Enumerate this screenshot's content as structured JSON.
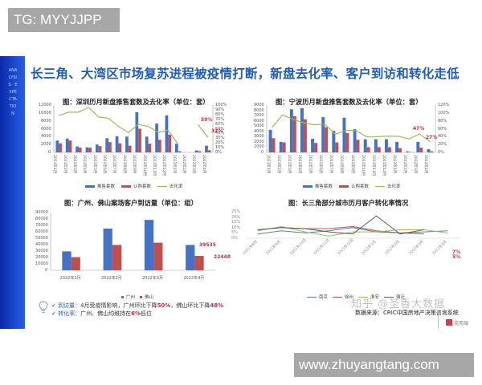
{
  "watermarks": {
    "top_tag": "TG: MYYJJPP",
    "bottom_tag": "www.zhuyangtang.com",
    "zhihu": "知乎 @圣香大数据",
    "logo_text": "克而瑞"
  },
  "slide": {
    "side_text": "ANALYSIS · EXPECTATION",
    "title": "长三角、大湾区市场复苏进程被疫情打断，新盘去化率、客户到访和转化走低",
    "notes": {
      "line1_key": "到访量：",
      "line1_text_a": "4月受疫情影响，广州环比下降",
      "line1_val_a": "50%",
      "line1_text_b": "，佛山环比下降",
      "line1_val_b": "48%",
      "line2_key": "转化率：",
      "line2_text_a": "广州、佛山均维持在",
      "line2_val": "6%",
      "line2_text_b": "低位"
    },
    "source": "数据来源：CRIC中国房地产决策咨询系统"
  },
  "colors": {
    "blue_bar": "#4472c4",
    "red_bar": "#c0504d",
    "green_line": "#9bbb59",
    "title_blue": "#1f5bb8",
    "annotation_red": "#c0303c",
    "line_nanjing": "#4f81bd",
    "line_xuzhou": "#c0504d",
    "line_huaian": "#9bbb59",
    "line_suqian": "#595959"
  },
  "chart_data": [
    {
      "type": "bar",
      "title": "图：深圳历月新盘推售套数及去化率（单位：套）",
      "categories": [
        "2021年1月",
        "2021年2月",
        "2021年3月",
        "2021年4月",
        "2021年5月",
        "2021年6月",
        "2021年7月",
        "2021年8月",
        "2021年9月",
        "2021年10月",
        "2021年11月",
        "2021年12月",
        "2022年1月",
        "2022年2月",
        "2022年3月",
        "2022年4月"
      ],
      "series": [
        {
          "name": "推售套数",
          "kind": "bar",
          "values": [
            3000,
            3500,
            1500,
            1300,
            2000,
            3600,
            4100,
            4000,
            10200,
            4000,
            7300,
            9400,
            2200,
            0,
            500,
            1700
          ]
        },
        {
          "name": "认购套数",
          "kind": "bar",
          "values": [
            2300,
            3000,
            1200,
            1200,
            1600,
            2600,
            2300,
            1700,
            6000,
            2200,
            3200,
            4500,
            300,
            0,
            300,
            550
          ]
        },
        {
          "name": "去化率",
          "kind": "line",
          "axis": "right",
          "values": [
            78,
            85,
            85,
            95,
            75,
            72,
            55,
            42,
            59,
            55,
            42,
            47,
            17,
            null,
            59,
            32
          ]
        }
      ],
      "annotations": [
        "59%",
        "32%"
      ],
      "ylim": [
        0,
        12000
      ],
      "yticks": [
        "0",
        "2000",
        "4000",
        "6000",
        "8000",
        "10000",
        "12000"
      ],
      "y2lim": [
        0,
        100
      ],
      "y2ticks": [
        "0%",
        "10%",
        "20%",
        "30%",
        "40%",
        "50%",
        "60%",
        "70%",
        "80%",
        "90%",
        "100%"
      ],
      "legend": [
        "推售套数",
        "认购套数",
        "去化率"
      ]
    },
    {
      "type": "bar",
      "title": "图：宁波历月新盘推售套数及去化率（单位：套）",
      "categories": [
        "2021年1月",
        "2021年2月",
        "2021年3月",
        "2021年4月",
        "2021年5月",
        "2021年6月",
        "2021年7月",
        "2021年8月",
        "2021年9月",
        "2021年10月",
        "2021年11月",
        "2021年12月",
        "2022年1月",
        "2022年2月",
        "2022年3月",
        "2022年4月"
      ],
      "series": [
        {
          "name": "推售套数",
          "kind": "bar",
          "values": [
            4300,
            2000,
            8200,
            8400,
            2600,
            6700,
            4100,
            6600,
            4400,
            2500,
            2500,
            2500,
            2000,
            200,
            2000,
            600
          ]
        },
        {
          "name": "认购套数",
          "kind": "bar",
          "values": [
            2700,
            1900,
            6900,
            6300,
            1800,
            4800,
            1900,
            3700,
            2400,
            1000,
            1000,
            1000,
            800,
            50,
            900,
            200
          ]
        },
        {
          "name": "去化率",
          "kind": "line",
          "axis": "right",
          "values": [
            63,
            95,
            84,
            75,
            70,
            72,
            46,
            56,
            55,
            39,
            40,
            41,
            41,
            34,
            47,
            27
          ]
        }
      ],
      "annotations": [
        "47%",
        "27%"
      ],
      "ylim": [
        0,
        9000
      ],
      "yticks": [
        "0",
        "1000",
        "2000",
        "3000",
        "4000",
        "5000",
        "6000",
        "7000",
        "8000",
        "9000"
      ],
      "y2lim": [
        0,
        120
      ],
      "y2ticks": [
        "0%",
        "20%",
        "40%",
        "60%",
        "80%",
        "100%",
        "120%"
      ],
      "legend": [
        "推售套数",
        "认购套数",
        "去化率"
      ]
    },
    {
      "type": "bar",
      "title": "图：广州、佛山案场客户到访量（单位：组）",
      "categories": [
        "2022年1月",
        "2022年2月",
        "2022年3月",
        "2022年4月"
      ],
      "series": [
        {
          "name": "广州",
          "values": [
            29500,
            65000,
            78500,
            39535
          ]
        },
        {
          "name": "佛山",
          "values": [
            20500,
            39500,
            43000,
            22448
          ]
        }
      ],
      "annotations": [
        "39535",
        "22448"
      ],
      "ylim": [
        0,
        90000
      ],
      "yticks": [
        "0",
        "10000",
        "20000",
        "30000",
        "40000",
        "50000",
        "60000",
        "70000",
        "80000",
        "90000"
      ],
      "legend": [
        "广州",
        "佛山"
      ]
    },
    {
      "type": "line",
      "title": "图：长三角部分城市历月客户转化率情况",
      "categories": [
        "2021年8月",
        "2021年9月",
        "2021年10月",
        "2021年11月",
        "2021年12月",
        "2022年1月",
        "2022年2月",
        "2022年3月",
        "2022年4月"
      ],
      "series": [
        {
          "name": "南京",
          "values": [
            4,
            7,
            5,
            7,
            10,
            6,
            5,
            6,
            7
          ]
        },
        {
          "name": "徐州",
          "values": [
            8,
            10,
            9,
            9,
            11,
            7,
            5,
            4,
            null
          ]
        },
        {
          "name": "淮安",
          "values": [
            7,
            11,
            6,
            2,
            6,
            6,
            8,
            8,
            5
          ]
        },
        {
          "name": "宿迁",
          "values": [
            8,
            10,
            9,
            6,
            4,
            21,
            4,
            8,
            null
          ]
        }
      ],
      "annotations": [
        "7%",
        "5%"
      ],
      "ylim": [
        0,
        25
      ],
      "yticks": [
        "0%",
        "5%",
        "10%",
        "15%",
        "20%",
        "25%"
      ],
      "legend": [
        "南京",
        "徐州",
        "淮安",
        "宿迁"
      ]
    }
  ],
  "legend_labels": {
    "pushed": "推售套数",
    "subscribed": "认购套数",
    "rate": "去化率",
    "gz": "广州",
    "fs": "佛山",
    "nj": "南京",
    "xz": "徐州",
    "ha": "淮安",
    "sq": "宿迁"
  }
}
